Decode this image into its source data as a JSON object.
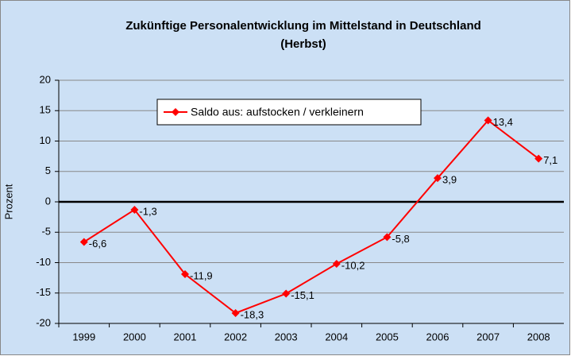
{
  "chart_data": {
    "type": "line",
    "title": [
      "Zukünftige Personalentwicklung im Mittelstand in Deutschland",
      "(Herbst)"
    ],
    "y_label": "Prozent",
    "categories": [
      "1999",
      "2000",
      "2001",
      "2002",
      "2003",
      "2004",
      "2005",
      "2006",
      "2007",
      "2008"
    ],
    "series": [
      {
        "name": "Saldo aus: aufstocken / verkleinern",
        "color": "#ff0000",
        "values": [
          -6.6,
          -1.3,
          -11.9,
          -18.3,
          -15.1,
          -10.2,
          -5.8,
          3.9,
          13.4,
          7.1
        ],
        "value_labels": [
          "-6,6",
          "-1,3",
          "-11,9",
          "-18,3",
          "-15,1",
          "-10,2",
          "-5,8",
          "3,9",
          "13,4",
          "7,1"
        ]
      }
    ],
    "ylim": [
      -20,
      20
    ],
    "yticks": [
      -20,
      -15,
      -10,
      -5,
      0,
      5,
      10,
      15,
      20
    ],
    "grid": true
  }
}
